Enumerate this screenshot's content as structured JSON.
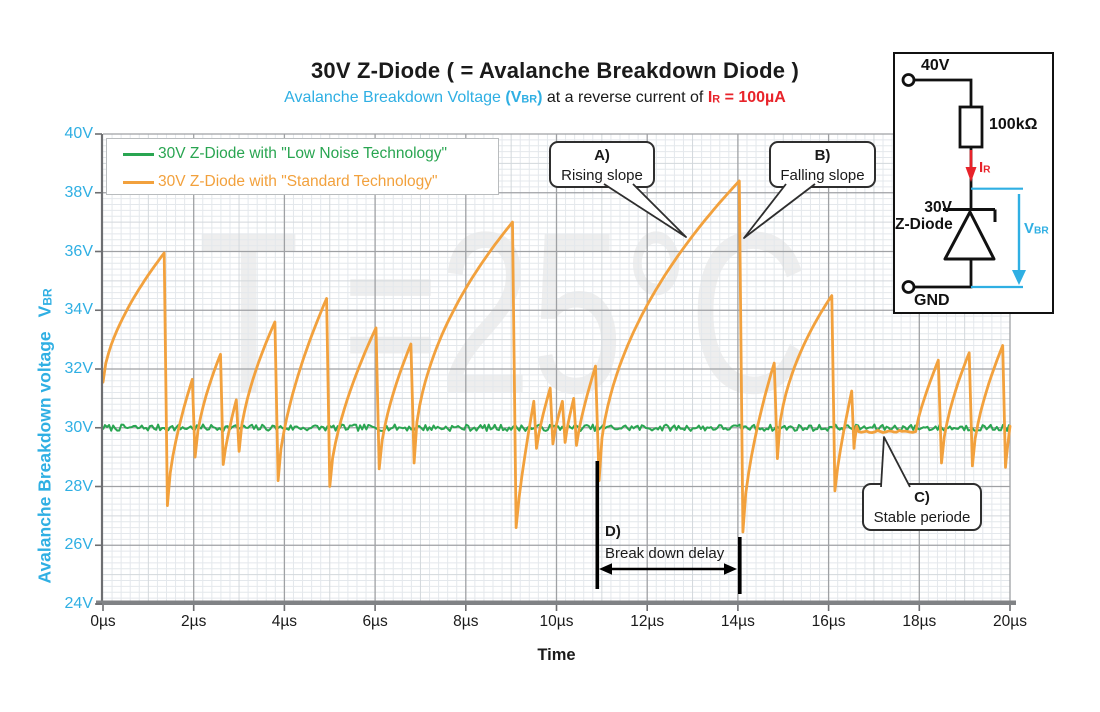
{
  "header": {
    "title": "30V Z-Diode ( = Avalanche Breakdown Diode )",
    "subtitle_segments": [
      {
        "t": "Avalanche Breakdown Voltage ",
        "c": "cyan",
        "b": false,
        "sub": false
      },
      {
        "t": "(V",
        "c": "cyan",
        "b": true,
        "sub": false
      },
      {
        "t": "BR",
        "c": "cyan",
        "b": true,
        "sub": true
      },
      {
        "t": ")",
        "c": "cyan",
        "b": true,
        "sub": false
      },
      {
        "t": " at a reverse current of  ",
        "c": "blk",
        "b": false,
        "sub": false
      },
      {
        "t": "I",
        "c": "red",
        "b": true,
        "sub": false
      },
      {
        "t": "R",
        "c": "red",
        "b": true,
        "sub": true
      },
      {
        "t": " = 100µA",
        "c": "red",
        "b": true,
        "sub": false
      }
    ]
  },
  "watermark": {
    "text": "T =25°C"
  },
  "axes": {
    "x": {
      "label": "Time",
      "unit": "µs",
      "range": [
        0,
        20
      ],
      "tick_values": [
        0,
        2,
        4,
        6,
        8,
        10,
        12,
        14,
        16,
        18,
        20
      ],
      "tick_labels": [
        "0µs",
        "2µs",
        "4µs",
        "6µs",
        "8µs",
        "10µs",
        "12µs",
        "14µs",
        "16µs",
        "18µs",
        "20µs"
      ]
    },
    "y": {
      "label_main": "Avalanche Breakdown voltage",
      "label_sym": "V",
      "label_sub": "BR",
      "unit": "V",
      "range": [
        24,
        40
      ],
      "tick_values": [
        24,
        26,
        28,
        30,
        32,
        34,
        36,
        38,
        40
      ],
      "tick_labels": [
        "24V",
        "26V",
        "28V",
        "30V",
        "32V",
        "34V",
        "36V",
        "38V",
        "40V"
      ]
    }
  },
  "legend": {
    "items": [
      {
        "label": "30V Z-Diode with \"Low Noise Technology\"",
        "color": "#29a551"
      },
      {
        "label": "30V Z-Diode with \"Standard Technology\"",
        "color": "#f2a13d"
      }
    ]
  },
  "annotations": {
    "callouts": [
      {
        "id": "A",
        "title": "A)",
        "text": "Rising slope"
      },
      {
        "id": "B",
        "title": "B)",
        "text": "Falling slope"
      },
      {
        "id": "C",
        "title": "C)",
        "text": "Stable periode"
      }
    ],
    "delay": {
      "title": "D)",
      "text": "Break down delay"
    }
  },
  "circuit": {
    "supply": "40V",
    "resistor": "100kΩ",
    "current_sym": "I",
    "current_sub": "R",
    "diode_line1": "30V",
    "diode_line2": "Z-Diode",
    "ground": "GND",
    "voltage_sym": "V",
    "voltage_sub": "BR"
  },
  "colors": {
    "cyan": "#2fafe3",
    "green": "#29a551",
    "orange": "#f2a13d",
    "red": "#e8232a",
    "grid_minor": "#e4e8ec",
    "grid_mid": "#d3d8dc",
    "grid_major": "#9fa1a4",
    "axis": "#6d6e71"
  },
  "chart_data": {
    "type": "line",
    "title": "30V Z-Diode ( = Avalanche Breakdown Diode )",
    "xlabel": "Time",
    "ylabel": "Avalanche Breakdown voltage VBR",
    "xlim": [
      0,
      20
    ],
    "ylim": [
      24,
      40
    ],
    "x_unit": "µs",
    "y_unit": "V",
    "grid": true,
    "legend_position": "top-left",
    "series": [
      {
        "name": "30V Z-Diode with \"Low Noise Technology\"",
        "color": "#29a551",
        "model": {
          "type": "flat_noise",
          "base": 30.0,
          "amplitude": 0.11
        }
      },
      {
        "name": "30V Z-Diode with \"Standard Technology\"",
        "color": "#f2a13d",
        "model": {
          "type": "sawtooth",
          "start": [
            0,
            31.55
          ],
          "events": [
            [
              "rise",
              1.35,
              35.95,
              0.62
            ],
            [
              "drop",
              1.42,
              27.35
            ],
            [
              "rise",
              1.97,
              31.65
            ],
            [
              "drop",
              2.03,
              29.0
            ],
            [
              "rise",
              2.59,
              32.5
            ],
            [
              "drop",
              2.65,
              28.75
            ],
            [
              "rise",
              2.94,
              30.95
            ],
            [
              "drop",
              3.0,
              29.2
            ],
            [
              "rise",
              3.79,
              33.6
            ],
            [
              "drop",
              3.86,
              28.2
            ],
            [
              "rise",
              4.93,
              34.4
            ],
            [
              "drop",
              5.0,
              28.0
            ],
            [
              "rise",
              6.02,
              33.4
            ],
            [
              "drop",
              6.09,
              28.6
            ],
            [
              "rise",
              6.79,
              32.85
            ],
            [
              "drop",
              6.86,
              28.8
            ],
            [
              "rise",
              9.03,
              37.0
            ],
            [
              "drop",
              9.11,
              26.6
            ],
            [
              "rise",
              9.5,
              30.9
            ],
            [
              "drop",
              9.56,
              29.3
            ],
            [
              "rise",
              9.86,
              31.35
            ],
            [
              "drop",
              9.92,
              29.45
            ],
            [
              "rise",
              10.13,
              30.9
            ],
            [
              "drop",
              10.19,
              29.5
            ],
            [
              "rise",
              10.38,
              31.0
            ],
            [
              "drop",
              10.44,
              29.4
            ],
            [
              "rise",
              10.86,
              32.1
            ],
            [
              "drop",
              10.94,
              28.2
            ],
            [
              "rise",
              14.03,
              38.4
            ],
            [
              "drop",
              14.11,
              26.45
            ],
            [
              "rise",
              14.8,
              32.2
            ],
            [
              "drop",
              14.87,
              28.95
            ],
            [
              "rise",
              16.07,
              34.5
            ],
            [
              "drop",
              16.14,
              27.85
            ],
            [
              "rise",
              16.51,
              31.25
            ],
            [
              "drop",
              16.56,
              29.3
            ],
            [
              "rise",
              16.62,
              30.05,
              0.8
            ],
            [
              "drop",
              16.66,
              29.87
            ],
            [
              "flat",
              17.92,
              29.87
            ],
            [
              "rise",
              18.42,
              32.3
            ],
            [
              "drop",
              18.49,
              28.8
            ],
            [
              "rise",
              19.1,
              32.55
            ],
            [
              "drop",
              19.17,
              28.7
            ],
            [
              "rise",
              19.84,
              32.8
            ],
            [
              "drop",
              19.9,
              28.65
            ],
            [
              "rise",
              20.0,
              30.05,
              0.9
            ]
          ]
        }
      }
    ]
  }
}
